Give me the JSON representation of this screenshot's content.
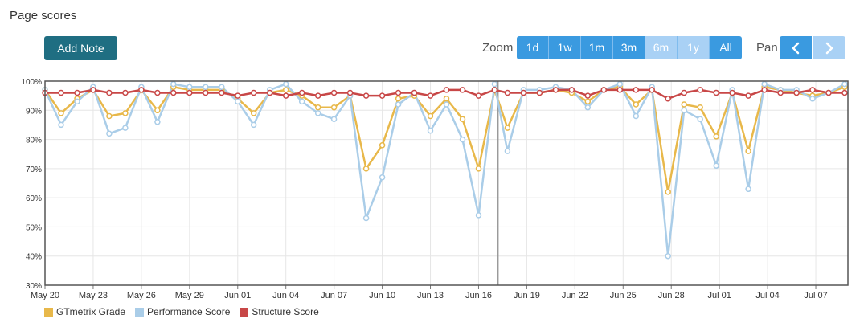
{
  "header": {
    "title": "Page scores",
    "add_note_label": "Add Note"
  },
  "zoom": {
    "label": "Zoom",
    "options": [
      "1d",
      "1w",
      "1m",
      "3m",
      "6m",
      "1y",
      "All"
    ],
    "disabled": [
      false,
      false,
      false,
      false,
      true,
      true,
      false
    ]
  },
  "pan": {
    "label": "Pan",
    "prev_icon": "chevron-left-icon",
    "next_icon": "chevron-right-icon"
  },
  "colors": {
    "grade": "#e8b84a",
    "performance": "#aacde8",
    "structure": "#c84747"
  },
  "chart_data": {
    "type": "line",
    "y_ticks": [
      "100%",
      "90%",
      "80%",
      "70%",
      "60%",
      "50%",
      "40%",
      "30%"
    ],
    "ylim": [
      30,
      100
    ],
    "x_ticks": [
      {
        "label": "May 20",
        "x": 0
      },
      {
        "label": "May 23",
        "x": 3
      },
      {
        "label": "May 26",
        "x": 6
      },
      {
        "label": "May 29",
        "x": 9
      },
      {
        "label": "Jun 01",
        "x": 12
      },
      {
        "label": "Jun 04",
        "x": 15
      },
      {
        "label": "Jun 07",
        "x": 18
      },
      {
        "label": "Jun 10",
        "x": 21
      },
      {
        "label": "Jun 13",
        "x": 24
      },
      {
        "label": "Jun 16",
        "x": 27
      },
      {
        "label": "Jun 19",
        "x": 30
      },
      {
        "label": "Jun 22",
        "x": 33
      },
      {
        "label": "Jun 25",
        "x": 36
      },
      {
        "label": "Jun 28",
        "x": 39
      },
      {
        "label": "Jul 01",
        "x": 42
      },
      {
        "label": "Jul 04",
        "x": 45
      },
      {
        "label": "Jul 07",
        "x": 48
      }
    ],
    "xlim": [
      0,
      50
    ],
    "cursor_x": 28.2,
    "series": [
      {
        "name": "GTmetrix Grade",
        "color": "#e8b84a",
        "points": [
          [
            0,
            97
          ],
          [
            1,
            89
          ],
          [
            2,
            94
          ],
          [
            3,
            97
          ],
          [
            4,
            88
          ],
          [
            5,
            89
          ],
          [
            6,
            97
          ],
          [
            7,
            90
          ],
          [
            8,
            98
          ],
          [
            9,
            97
          ],
          [
            10,
            97
          ],
          [
            11,
            97
          ],
          [
            12,
            94
          ],
          [
            13,
            89
          ],
          [
            14,
            96
          ],
          [
            15,
            97
          ],
          [
            16,
            95
          ],
          [
            17,
            91
          ],
          [
            18,
            91
          ],
          [
            19,
            95
          ],
          [
            20,
            70
          ],
          [
            21,
            78
          ],
          [
            22,
            94
          ],
          [
            23,
            95
          ],
          [
            24,
            88
          ],
          [
            25,
            94
          ],
          [
            26,
            87
          ],
          [
            27,
            70
          ],
          [
            28,
            97
          ],
          [
            28.8,
            84
          ],
          [
            29.8,
            96
          ],
          [
            30.8,
            96
          ],
          [
            31.8,
            97
          ],
          [
            32.8,
            96
          ],
          [
            33.8,
            93
          ],
          [
            34.8,
            97
          ],
          [
            35.8,
            98
          ],
          [
            36.8,
            92
          ],
          [
            37.8,
            97
          ],
          [
            38.8,
            62
          ],
          [
            39.8,
            92
          ],
          [
            40.8,
            91
          ],
          [
            41.8,
            81
          ],
          [
            42.8,
            96
          ],
          [
            43.8,
            76
          ],
          [
            44.8,
            98
          ],
          [
            45.8,
            97
          ],
          [
            46.8,
            96
          ],
          [
            47.8,
            95
          ],
          [
            48.8,
            96
          ],
          [
            49.8,
            98
          ]
        ]
      },
      {
        "name": "Performance Score",
        "color": "#aacde8",
        "points": [
          [
            0,
            97
          ],
          [
            1,
            85
          ],
          [
            2,
            93
          ],
          [
            3,
            98
          ],
          [
            4,
            82
          ],
          [
            5,
            84
          ],
          [
            6,
            98
          ],
          [
            7,
            86
          ],
          [
            8,
            99
          ],
          [
            9,
            98
          ],
          [
            10,
            98
          ],
          [
            11,
            98
          ],
          [
            12,
            93
          ],
          [
            13,
            85
          ],
          [
            14,
            97
          ],
          [
            15,
            99
          ],
          [
            16,
            93
          ],
          [
            17,
            89
          ],
          [
            18,
            87
          ],
          [
            19,
            95
          ],
          [
            20,
            53
          ],
          [
            21,
            67
          ],
          [
            22,
            92
          ],
          [
            23,
            96
          ],
          [
            24,
            83
          ],
          [
            25,
            92
          ],
          [
            26,
            80
          ],
          [
            27,
            54
          ],
          [
            28,
            99
          ],
          [
            28.8,
            76
          ],
          [
            29.8,
            97
          ],
          [
            30.8,
            97
          ],
          [
            31.8,
            98
          ],
          [
            32.8,
            97
          ],
          [
            33.8,
            91
          ],
          [
            34.8,
            97
          ],
          [
            35.8,
            99
          ],
          [
            36.8,
            88
          ],
          [
            37.8,
            98
          ],
          [
            38.8,
            40
          ],
          [
            39.8,
            90
          ],
          [
            40.8,
            87
          ],
          [
            41.8,
            71
          ],
          [
            42.8,
            97
          ],
          [
            43.8,
            63
          ],
          [
            44.8,
            99
          ],
          [
            45.8,
            97
          ],
          [
            46.8,
            97
          ],
          [
            47.8,
            94
          ],
          [
            48.8,
            96
          ],
          [
            49.8,
            99
          ]
        ]
      },
      {
        "name": "Structure Score",
        "color": "#c84747",
        "points": [
          [
            0,
            96
          ],
          [
            1,
            96
          ],
          [
            2,
            96
          ],
          [
            3,
            97
          ],
          [
            4,
            96
          ],
          [
            5,
            96
          ],
          [
            6,
            97
          ],
          [
            7,
            96
          ],
          [
            8,
            96
          ],
          [
            9,
            96
          ],
          [
            10,
            96
          ],
          [
            11,
            96
          ],
          [
            12,
            95
          ],
          [
            13,
            96
          ],
          [
            14,
            96
          ],
          [
            15,
            95
          ],
          [
            16,
            96
          ],
          [
            17,
            95
          ],
          [
            18,
            96
          ],
          [
            19,
            96
          ],
          [
            20,
            95
          ],
          [
            21,
            95
          ],
          [
            22,
            96
          ],
          [
            23,
            96
          ],
          [
            24,
            95
          ],
          [
            25,
            97
          ],
          [
            26,
            97
          ],
          [
            27,
            95
          ],
          [
            28,
            97
          ],
          [
            28.8,
            96
          ],
          [
            29.8,
            96
          ],
          [
            30.8,
            96
          ],
          [
            31.8,
            97
          ],
          [
            32.8,
            97
          ],
          [
            33.8,
            95
          ],
          [
            34.8,
            97
          ],
          [
            35.8,
            97
          ],
          [
            36.8,
            97
          ],
          [
            37.8,
            97
          ],
          [
            38.8,
            94
          ],
          [
            39.8,
            96
          ],
          [
            40.8,
            97
          ],
          [
            41.8,
            96
          ],
          [
            42.8,
            96
          ],
          [
            43.8,
            95
          ],
          [
            44.8,
            97
          ],
          [
            45.8,
            96
          ],
          [
            46.8,
            96
          ],
          [
            47.8,
            97
          ],
          [
            48.8,
            96
          ],
          [
            49.8,
            96
          ]
        ]
      }
    ],
    "legend": [
      "GTmetrix Grade",
      "Performance Score",
      "Structure Score"
    ]
  }
}
